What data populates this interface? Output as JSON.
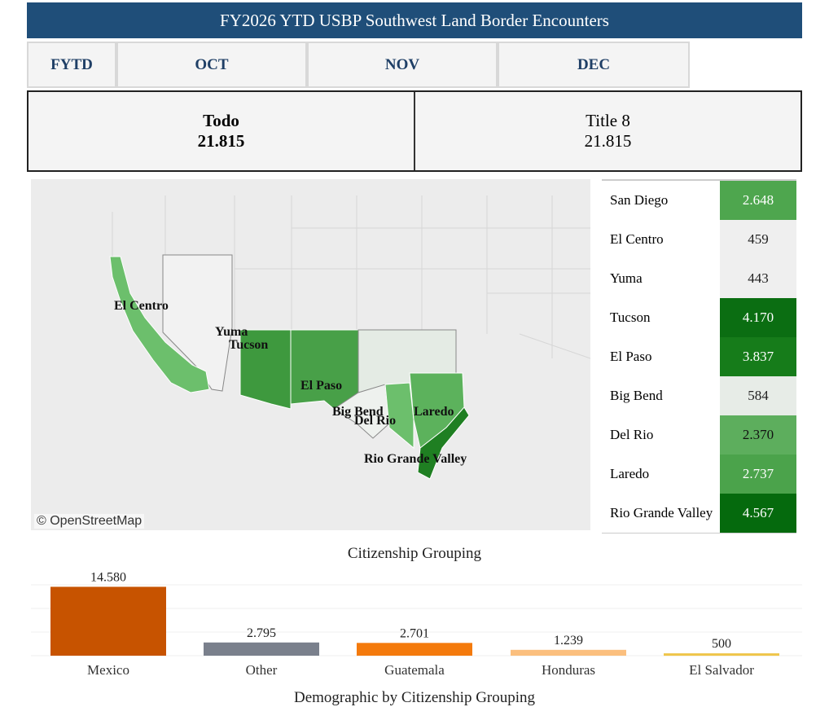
{
  "header": {
    "title": "FY2026 YTD USBP Southwest Land Border Encounters"
  },
  "tabs": [
    {
      "label": "FYTD"
    },
    {
      "label": "OCT"
    },
    {
      "label": "NOV"
    },
    {
      "label": "DEC"
    }
  ],
  "summary": {
    "all_label": "Todo",
    "all_value": "21.815",
    "title8_label": "Title 8",
    "title8_value": "21.815"
  },
  "map": {
    "attribution": "© OpenStreetMap",
    "labels": [
      "El Centro",
      "Yuma",
      "Tucson",
      "El Paso",
      "Big Bend",
      "Del Rio",
      "Laredo",
      "Rio Grande Valley"
    ]
  },
  "sectors": [
    {
      "name": "San Diego",
      "value": "2.648",
      "color": "#4ea64e",
      "text": "#fff"
    },
    {
      "name": "El Centro",
      "value": "459",
      "color": "#efefef",
      "text": "#222"
    },
    {
      "name": "Yuma",
      "value": "443",
      "color": "#efefef",
      "text": "#222"
    },
    {
      "name": "Tucson",
      "value": "4.170",
      "color": "#0b6e12",
      "text": "#fff"
    },
    {
      "name": "El Paso",
      "value": "3.837",
      "color": "#167c1a",
      "text": "#fff"
    },
    {
      "name": "Big Bend",
      "value": "584",
      "color": "#e7ece7",
      "text": "#222"
    },
    {
      "name": "Del Rio",
      "value": "2.370",
      "color": "#5dae5d",
      "text": "#111"
    },
    {
      "name": "Laredo",
      "value": "2.737",
      "color": "#4ba34b",
      "text": "#fff"
    },
    {
      "name": "Rio Grande Valley",
      "value": "4.567",
      "color": "#056a0d",
      "text": "#fff"
    }
  ],
  "chart_data": {
    "type": "bar",
    "title": "Citizenship Grouping",
    "categories": [
      "Mexico",
      "Other",
      "Guatemala",
      "Honduras",
      "El Salvador"
    ],
    "values": [
      14580,
      2795,
      2701,
      1239,
      500
    ],
    "labels": [
      "14.580",
      "2.795",
      "2.701",
      "1.239",
      "500"
    ],
    "colors": [
      "#c75300",
      "#7a808c",
      "#f47a0c",
      "#fbbf7e",
      "#efc54a"
    ],
    "ylim": [
      0,
      15000
    ],
    "grid": true
  },
  "footer": {
    "next_title": "Demographic by Citizenship Grouping"
  }
}
